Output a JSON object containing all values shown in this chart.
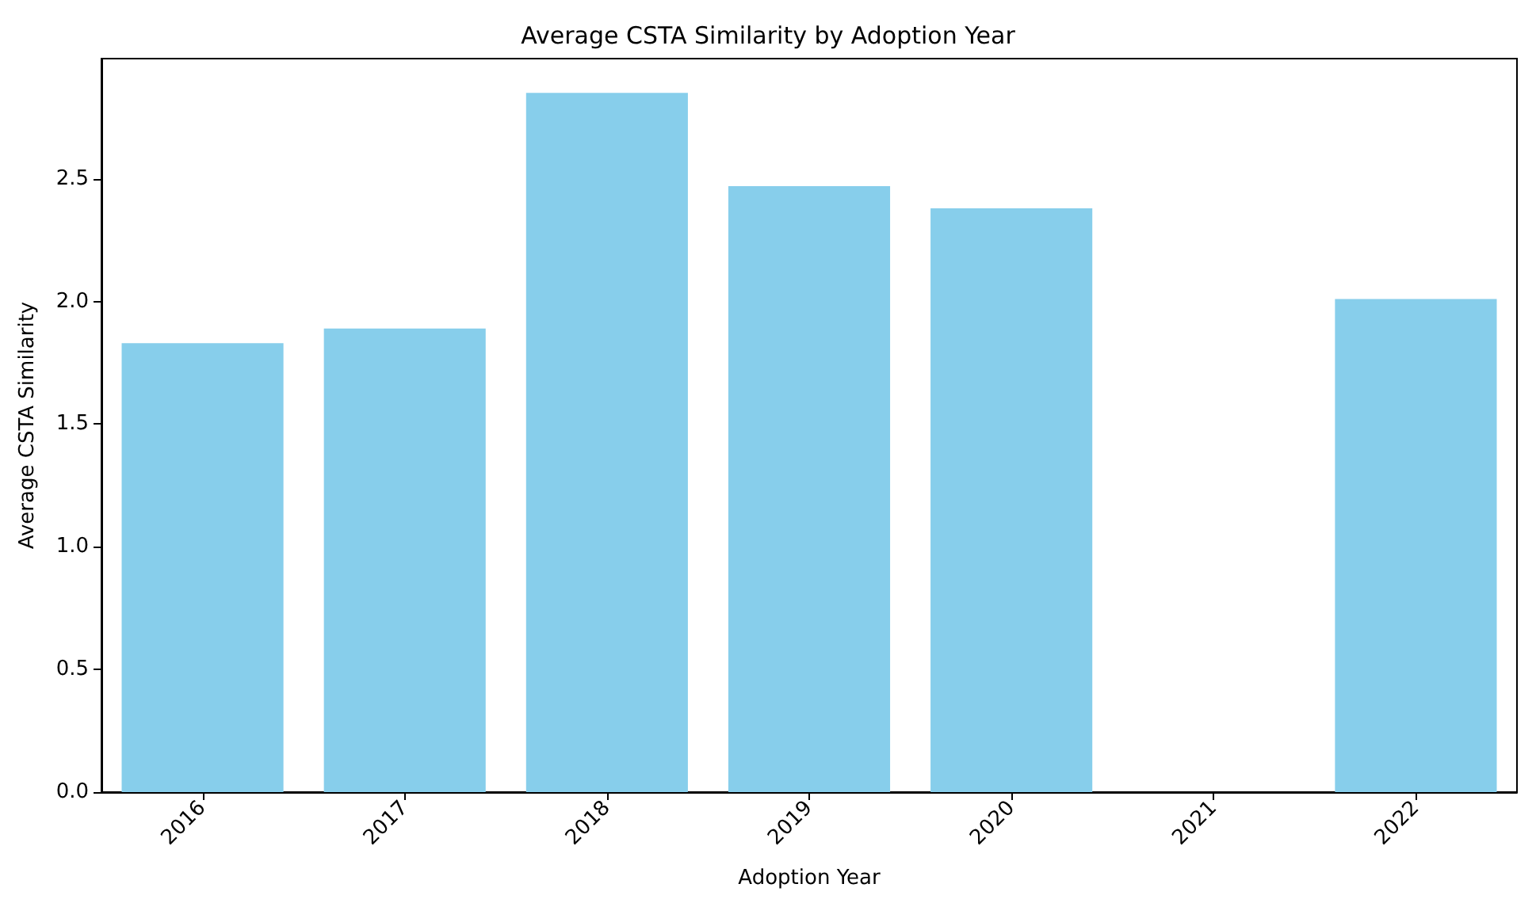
{
  "chart_data": {
    "type": "bar",
    "title": "Average CSTA Similarity by Adoption Year",
    "xlabel": "Adoption Year",
    "ylabel": "Average CSTA Similarity",
    "categories": [
      "2016",
      "2017",
      "2018",
      "2019",
      "2020",
      "2021",
      "2022"
    ],
    "values": [
      1.83,
      1.89,
      2.85,
      2.47,
      2.38,
      null,
      2.01
    ],
    "color": "#87ceeb",
    "ylim": [
      0,
      2.99
    ],
    "yticks": [
      {
        "value": 0,
        "label": "0.0"
      },
      {
        "value": 0.5,
        "label": "0.5"
      },
      {
        "value": 1,
        "label": "1.0"
      },
      {
        "value": 1.5,
        "label": "1.5"
      },
      {
        "value": 2,
        "label": "2.0"
      },
      {
        "value": 2.5,
        "label": "2.5"
      }
    ],
    "grid": false
  }
}
